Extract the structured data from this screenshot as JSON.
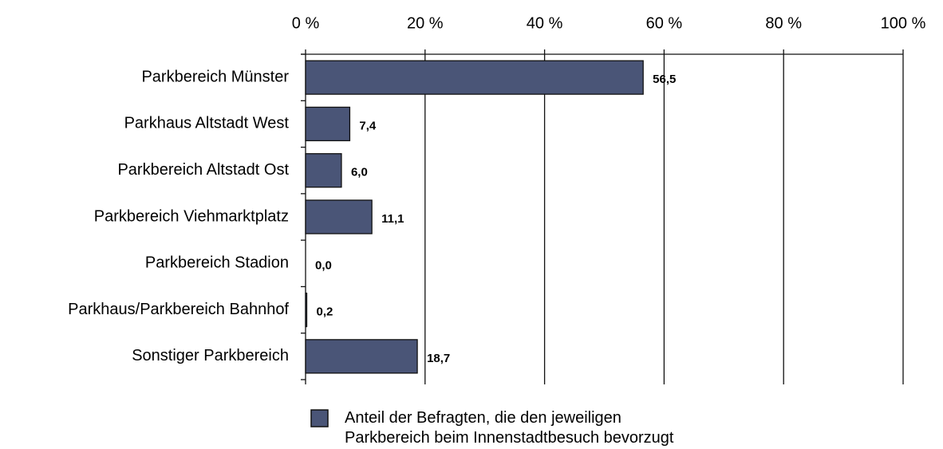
{
  "chart_data": {
    "type": "bar",
    "orientation": "horizontal",
    "categories": [
      "Parkbereich Münster",
      "Parkhaus Altstadt West",
      "Parkbereich Altstadt Ost",
      "Parkbereich Viehmarktplatz",
      "Parkbereich Stadion",
      "Parkhaus/Parkbereich Bahnhof",
      "Sonstiger Parkbereich"
    ],
    "series": [
      {
        "name": "Anteil der Befragten, die den jeweiligen Parkbereich beim Innenstadtbesuch bevorzugt aufsuchen.",
        "color": "#4a5577",
        "values": [
          56.5,
          7.4,
          6.0,
          11.1,
          0.0,
          0.2,
          18.7
        ],
        "value_labels": [
          "56,5",
          "7,4",
          "6,0",
          "11,1",
          "0,0",
          "0,2",
          "18,7"
        ]
      }
    ],
    "xlim": [
      0,
      100
    ],
    "xticks": [
      {
        "value": 0,
        "label": "0 %"
      },
      {
        "value": 20,
        "label": "20 %"
      },
      {
        "value": 40,
        "label": "40 %"
      },
      {
        "value": 60,
        "label": "60 %"
      },
      {
        "value": 80,
        "label": "80 %"
      },
      {
        "value": 100,
        "label": "100 %"
      }
    ],
    "grid": true
  }
}
